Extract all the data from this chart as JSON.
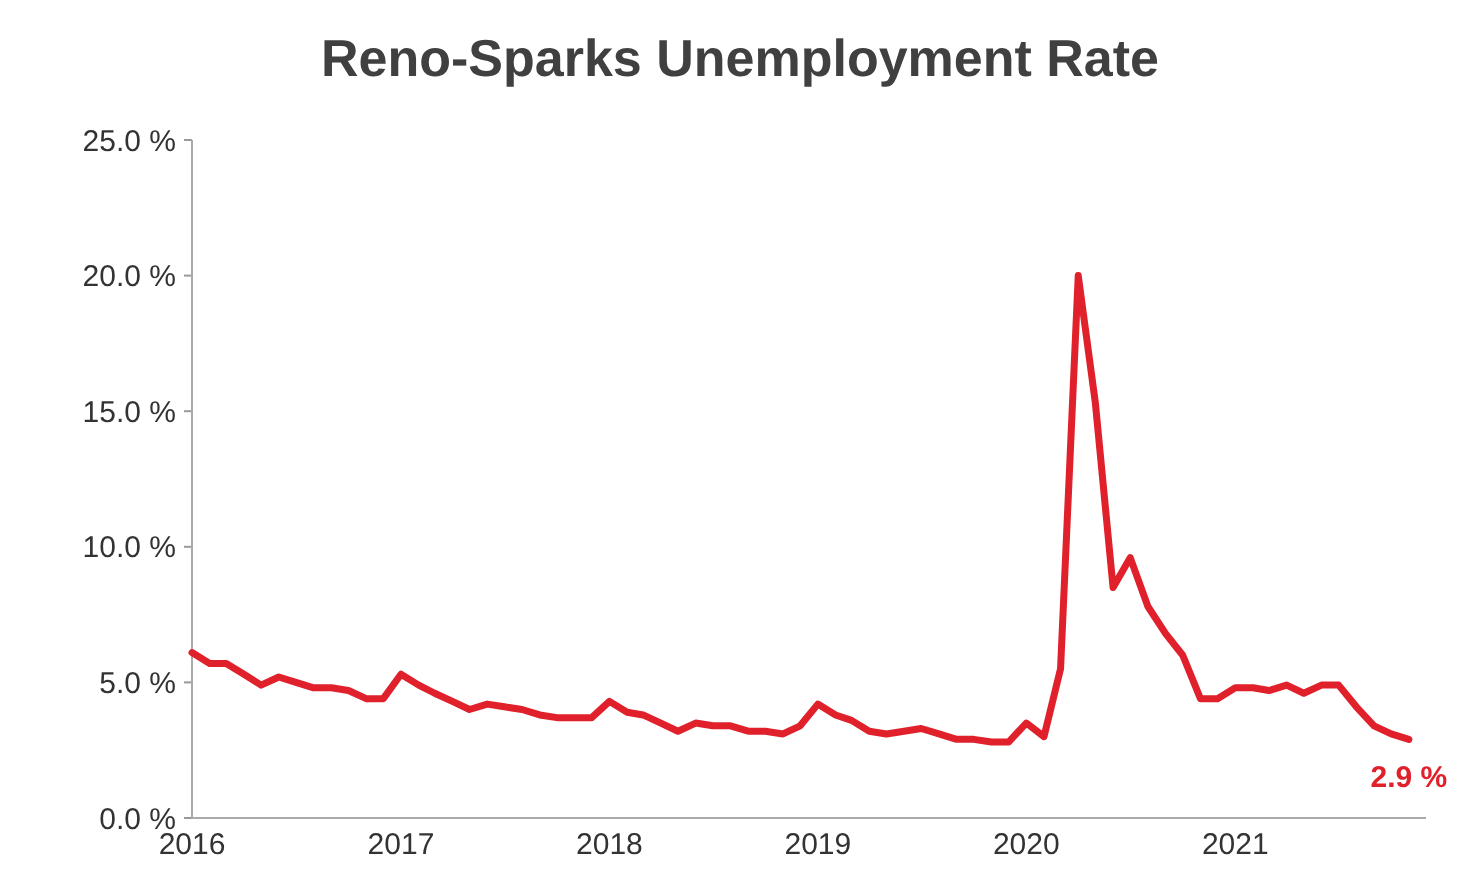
{
  "chart_data": {
    "type": "line",
    "title": "Reno-Sparks Unemployment Rate",
    "x": [
      "2016-01",
      "2016-02",
      "2016-03",
      "2016-04",
      "2016-05",
      "2016-06",
      "2016-07",
      "2016-08",
      "2016-09",
      "2016-10",
      "2016-11",
      "2016-12",
      "2017-01",
      "2017-02",
      "2017-03",
      "2017-04",
      "2017-05",
      "2017-06",
      "2017-07",
      "2017-08",
      "2017-09",
      "2017-10",
      "2017-11",
      "2017-12",
      "2018-01",
      "2018-02",
      "2018-03",
      "2018-04",
      "2018-05",
      "2018-06",
      "2018-07",
      "2018-08",
      "2018-09",
      "2018-10",
      "2018-11",
      "2018-12",
      "2019-01",
      "2019-02",
      "2019-03",
      "2019-04",
      "2019-05",
      "2019-06",
      "2019-07",
      "2019-08",
      "2019-09",
      "2019-10",
      "2019-11",
      "2019-12",
      "2020-01",
      "2020-02",
      "2020-03",
      "2020-04",
      "2020-05",
      "2020-06",
      "2020-07",
      "2020-08",
      "2020-09",
      "2020-10",
      "2020-11",
      "2020-12",
      "2021-01",
      "2021-02",
      "2021-03",
      "2021-04",
      "2021-05",
      "2021-06",
      "2021-07",
      "2021-08",
      "2021-09",
      "2021-10",
      "2021-11"
    ],
    "series": [
      {
        "color": "#e0202a",
        "values": [
          6.1,
          5.7,
          5.7,
          5.3,
          4.9,
          5.2,
          5.0,
          4.8,
          4.8,
          4.7,
          4.4,
          4.4,
          5.3,
          4.9,
          4.6,
          4.3,
          4.0,
          4.2,
          4.1,
          4.0,
          3.8,
          3.7,
          3.7,
          3.7,
          4.3,
          3.9,
          3.8,
          3.5,
          3.2,
          3.5,
          3.4,
          3.4,
          3.2,
          3.2,
          3.1,
          3.4,
          4.2,
          3.8,
          3.6,
          3.2,
          3.1,
          3.2,
          3.3,
          3.1,
          2.9,
          2.9,
          2.8,
          2.8,
          3.5,
          3.0,
          5.5,
          20.0,
          15.3,
          8.5,
          9.6,
          7.8,
          6.8,
          6.0,
          4.4,
          4.4,
          4.8,
          4.8,
          4.7,
          4.9,
          4.6,
          4.9,
          4.9,
          4.1,
          3.4,
          3.1,
          2.9
        ]
      }
    ],
    "xlim": [
      "2016-01",
      "2021-12"
    ],
    "xticks": [
      {
        "value": "2016-01",
        "label": "2016"
      },
      {
        "value": "2017-01",
        "label": "2017"
      },
      {
        "value": "2018-01",
        "label": "2018"
      },
      {
        "value": "2019-01",
        "label": "2019"
      },
      {
        "value": "2020-01",
        "label": "2020"
      },
      {
        "value": "2021-01",
        "label": "2021"
      }
    ],
    "ylim": [
      0,
      25
    ],
    "yticks": [
      {
        "value": 0,
        "label": "0.0 %"
      },
      {
        "value": 5,
        "label": "5.0 %"
      },
      {
        "value": 10,
        "label": "10.0 %"
      },
      {
        "value": 15,
        "label": "15.0 %"
      },
      {
        "value": 20,
        "label": "20.0 %"
      },
      {
        "value": 25,
        "label": "25.0 %"
      }
    ],
    "annotations": [
      {
        "text": "2.9 %",
        "x": "2021-11",
        "y": 2.9
      }
    ],
    "marker": "none",
    "line_style": "solid"
  }
}
